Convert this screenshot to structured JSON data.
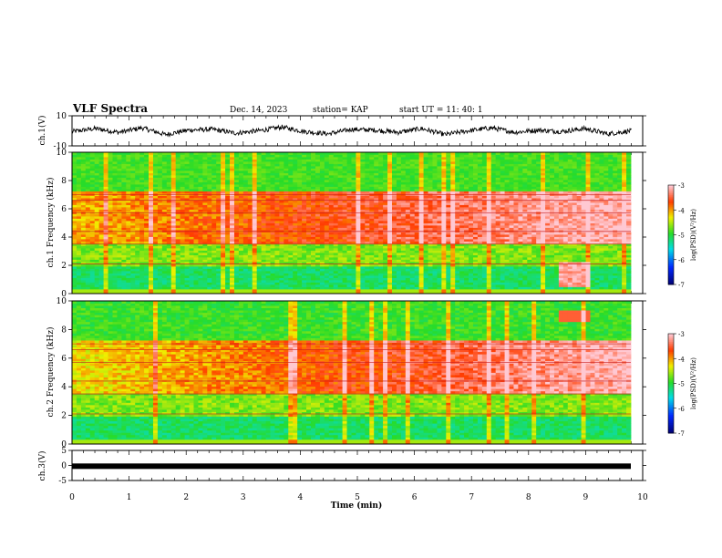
{
  "header": {
    "title": "VLF Spectra",
    "date": "Dec. 14, 2023",
    "station": "station= KAP",
    "start": "start  UT  =   11: 40: 1"
  },
  "chart_data": [
    {
      "type": "line",
      "panel": "ch1-waveform",
      "ylabel": "ch.1(V)",
      "ylim": [
        -10,
        10
      ],
      "yticks": [
        "10",
        "-10"
      ],
      "xlim": [
        0,
        10
      ],
      "series": [
        {
          "values": [
            -0.5,
            1.5,
            -1.0,
            2.0,
            -2.5,
            0.5,
            1.0,
            -1.5,
            0.0,
            2.5,
            -0.5,
            -2.0,
            1.0,
            0.5,
            -1.0,
            1.5,
            -2.5,
            0.0,
            2.0,
            -1.0,
            0.5,
            -0.5,
            1.5,
            -2.0,
            0.0
          ]
        }
      ]
    },
    {
      "type": "heatmap",
      "panel": "ch1-spectrogram",
      "ylabel": "ch.1 Frequency (kHz)",
      "ylim": [
        0,
        10
      ],
      "yticks": [
        "0",
        "2",
        "4",
        "6",
        "8",
        "10"
      ],
      "xlim": [
        0,
        10
      ],
      "colorbar": {
        "label": "log(PSD)(V²/Hz)",
        "range": [
          -7,
          -3
        ],
        "ticks": [
          "-3",
          "-4",
          "-5",
          "-6",
          "-7"
        ]
      }
    },
    {
      "type": "heatmap",
      "panel": "ch2-spectrogram",
      "ylabel": "ch.2 Frequency (kHz)",
      "ylim": [
        0,
        10
      ],
      "yticks": [
        "0",
        "2",
        "4",
        "6",
        "8",
        "10"
      ],
      "xlim": [
        0,
        10
      ],
      "colorbar": {
        "label": "log(PSD)(V²/Hz)",
        "range": [
          -7,
          -3
        ],
        "ticks": [
          "-3",
          "-4",
          "-5",
          "-6",
          "-7"
        ]
      }
    },
    {
      "type": "line",
      "panel": "ch3-waveform",
      "ylabel": "ch.3(V)",
      "ylim": [
        -5,
        5
      ],
      "yticks": [
        "5",
        "0",
        "-5"
      ],
      "xlim": [
        0,
        10
      ],
      "series": [
        {
          "values": [
            -0.25,
            -0.25
          ]
        }
      ]
    }
  ],
  "xaxis": {
    "label": "Time (min)",
    "ticks": [
      "0",
      "1",
      "2",
      "3",
      "4",
      "5",
      "6",
      "7",
      "8",
      "9",
      "10"
    ]
  }
}
